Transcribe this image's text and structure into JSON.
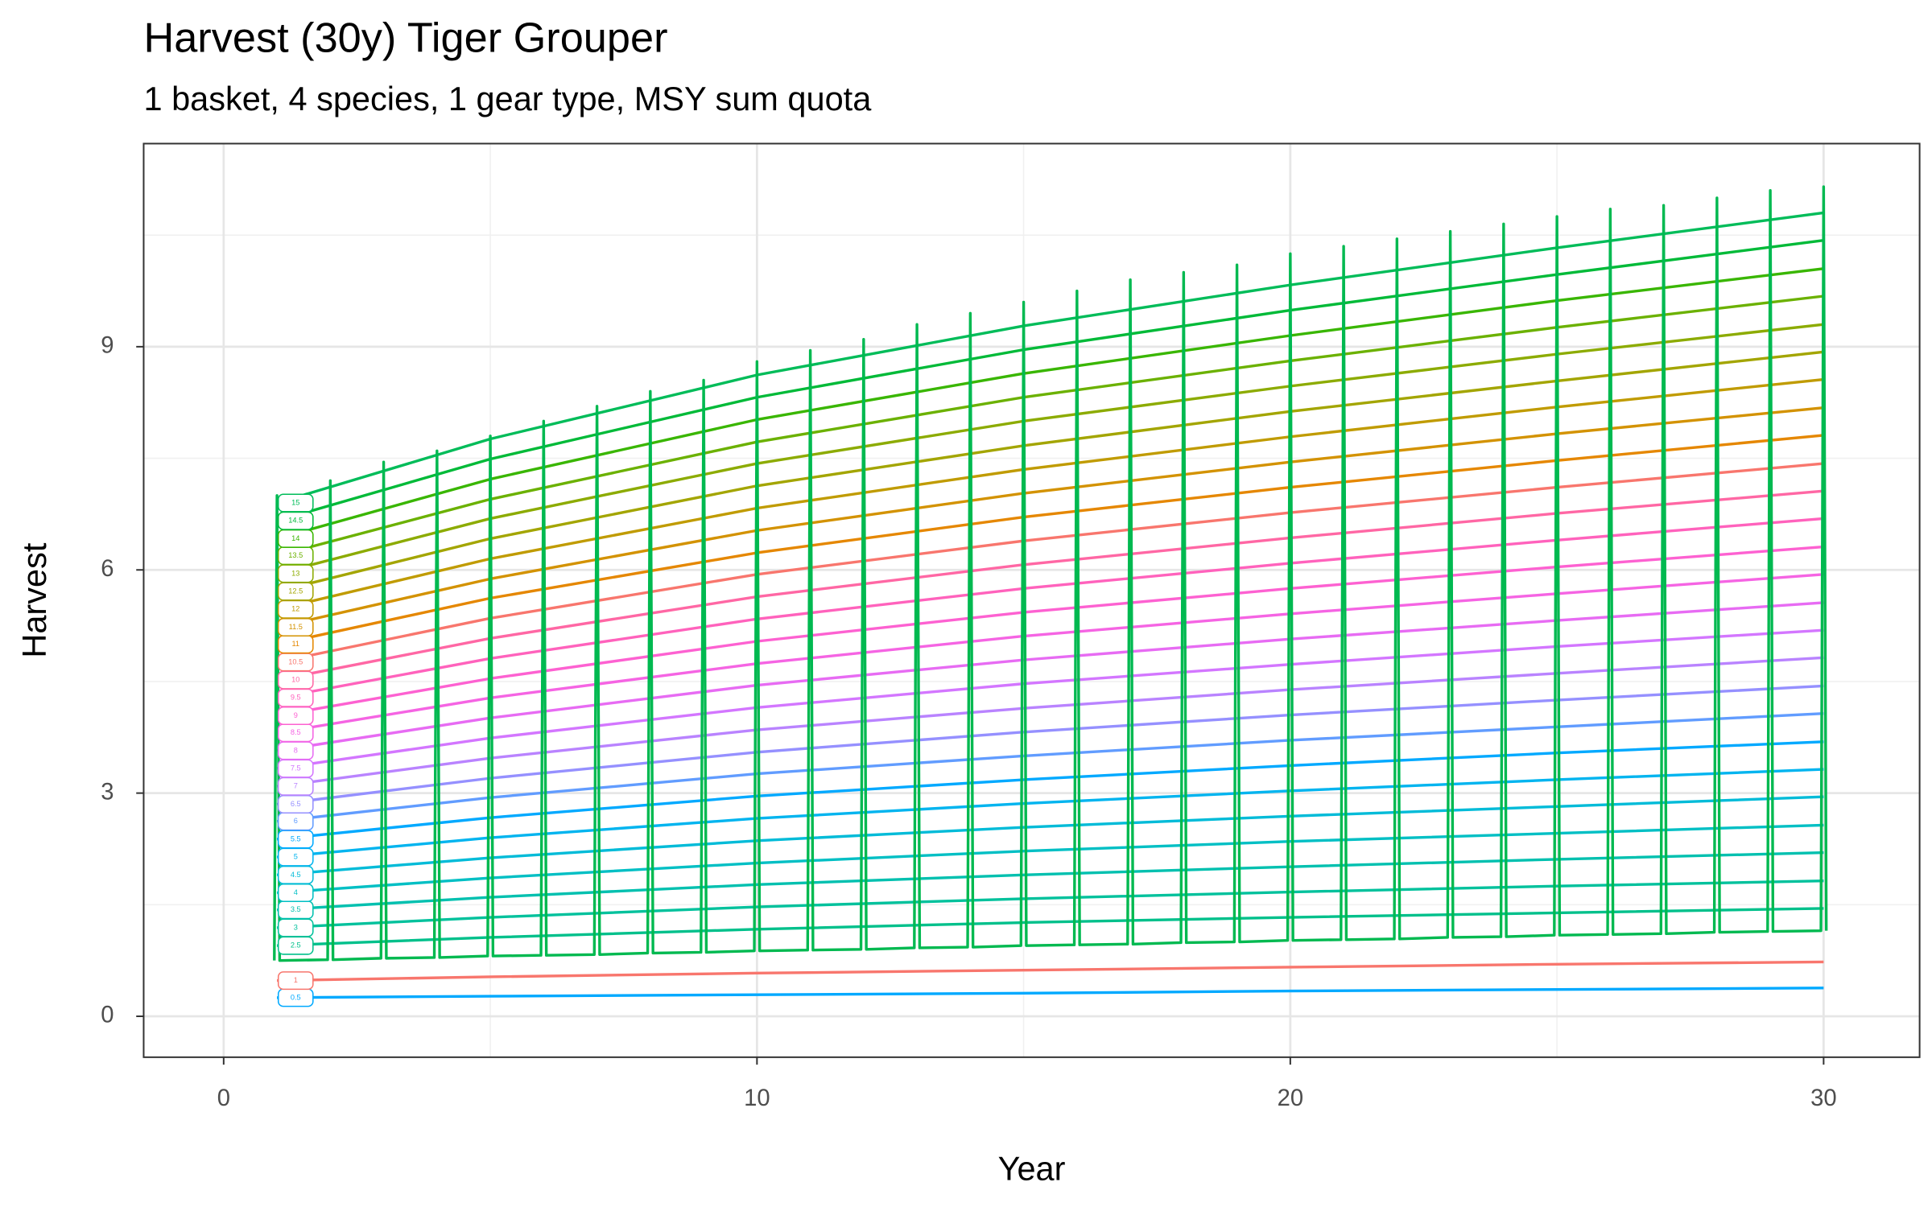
{
  "chart_data": {
    "type": "line",
    "title": "Harvest (30y) Tiger Grouper",
    "subtitle": "1 basket, 4 species, 1 gear type, MSY sum quota",
    "x_label": "Year",
    "y_label": "Harvest",
    "xlim": [
      -1.5,
      31.8
    ],
    "ylim": [
      -0.55,
      11.73
    ],
    "xticks": [
      0,
      10,
      20,
      30
    ],
    "yticks": [
      0,
      3,
      6,
      9
    ],
    "xminorticks": [
      5,
      15,
      25
    ],
    "yminorticks": [
      1.5,
      4.5,
      7.5,
      10.5
    ],
    "grid": true,
    "x": [
      1,
      5,
      10,
      15,
      20,
      25,
      30
    ],
    "series": [
      {
        "name": "0.5",
        "color": "#00a9ff",
        "values": [
          0.25,
          0.27,
          0.29,
          0.31,
          0.34,
          0.36,
          0.38
        ]
      },
      {
        "name": "1",
        "color": "#f8766d",
        "values": [
          0.48,
          0.53,
          0.58,
          0.62,
          0.66,
          0.7,
          0.73
        ]
      },
      {
        "name": "2.5",
        "color": "#00c08b",
        "values": [
          0.95,
          1.06,
          1.17,
          1.26,
          1.33,
          1.39,
          1.45
        ]
      },
      {
        "name": "3",
        "color": "#00c19c",
        "values": [
          1.19,
          1.33,
          1.47,
          1.58,
          1.67,
          1.75,
          1.82
        ]
      },
      {
        "name": "3.5",
        "color": "#00c0af",
        "values": [
          1.43,
          1.6,
          1.77,
          1.9,
          2.01,
          2.11,
          2.2
        ]
      },
      {
        "name": "4",
        "color": "#00bfc4",
        "values": [
          1.66,
          1.86,
          2.06,
          2.22,
          2.35,
          2.46,
          2.57
        ]
      },
      {
        "name": "4.5",
        "color": "#00bbd8",
        "values": [
          1.9,
          2.13,
          2.36,
          2.54,
          2.69,
          2.82,
          2.95
        ]
      },
      {
        "name": "5",
        "color": "#00b4ef",
        "values": [
          2.14,
          2.4,
          2.66,
          2.86,
          3.03,
          3.18,
          3.32
        ]
      },
      {
        "name": "5.5",
        "color": "#00a9ff",
        "values": [
          2.38,
          2.67,
          2.96,
          3.18,
          3.37,
          3.54,
          3.69
        ]
      },
      {
        "name": "6",
        "color": "#619cff",
        "values": [
          2.62,
          2.94,
          3.26,
          3.5,
          3.71,
          3.89,
          4.07
        ]
      },
      {
        "name": "6.5",
        "color": "#9590ff",
        "values": [
          2.85,
          3.2,
          3.55,
          3.82,
          4.05,
          4.25,
          4.44
        ]
      },
      {
        "name": "7",
        "color": "#b983ff",
        "values": [
          3.09,
          3.47,
          3.85,
          4.14,
          4.39,
          4.61,
          4.82
        ]
      },
      {
        "name": "7.5",
        "color": "#d376ff",
        "values": [
          3.33,
          3.74,
          4.15,
          4.47,
          4.73,
          4.97,
          5.19
        ]
      },
      {
        "name": "8",
        "color": "#e76bf3",
        "values": [
          3.57,
          4.01,
          4.45,
          4.79,
          5.07,
          5.32,
          5.56
        ]
      },
      {
        "name": "8.5",
        "color": "#f564e3",
        "values": [
          3.81,
          4.28,
          4.74,
          5.11,
          5.41,
          5.68,
          5.94
        ]
      },
      {
        "name": "9",
        "color": "#fd61d1",
        "values": [
          4.04,
          4.54,
          5.04,
          5.43,
          5.75,
          6.04,
          6.31
        ]
      },
      {
        "name": "9.5",
        "color": "#ff62bc",
        "values": [
          4.28,
          4.81,
          5.34,
          5.75,
          6.09,
          6.4,
          6.69
        ]
      },
      {
        "name": "10",
        "color": "#ff67a4",
        "values": [
          4.52,
          5.08,
          5.64,
          6.07,
          6.43,
          6.76,
          7.06
        ]
      },
      {
        "name": "10.5",
        "color": "#f8766d",
        "values": [
          4.76,
          5.35,
          5.94,
          6.39,
          6.77,
          7.11,
          7.43
        ]
      },
      {
        "name": "11",
        "color": "#e58700",
        "values": [
          5.0,
          5.62,
          6.23,
          6.71,
          7.11,
          7.47,
          7.81
        ]
      },
      {
        "name": "11.5",
        "color": "#d39200",
        "values": [
          5.23,
          5.88,
          6.53,
          7.03,
          7.45,
          7.83,
          8.18
        ]
      },
      {
        "name": "12",
        "color": "#c09b00",
        "values": [
          5.47,
          6.15,
          6.83,
          7.35,
          7.79,
          8.19,
          8.56
        ]
      },
      {
        "name": "12.5",
        "color": "#a3a500",
        "values": [
          5.71,
          6.42,
          7.13,
          7.67,
          8.13,
          8.54,
          8.93
        ]
      },
      {
        "name": "13",
        "color": "#8cab00",
        "values": [
          5.95,
          6.69,
          7.43,
          8.0,
          8.47,
          8.9,
          9.3
        ]
      },
      {
        "name": "13.5",
        "color": "#6bb100",
        "values": [
          6.19,
          6.95,
          7.72,
          8.32,
          8.81,
          9.26,
          9.68
        ]
      },
      {
        "name": "14",
        "color": "#39b600",
        "values": [
          6.42,
          7.22,
          8.02,
          8.64,
          9.15,
          9.62,
          10.05
        ]
      },
      {
        "name": "14.5",
        "color": "#00ba38",
        "values": [
          6.66,
          7.49,
          8.32,
          8.96,
          9.49,
          9.97,
          10.43
        ]
      },
      {
        "name": "15",
        "color": "#00bc59",
        "values": [
          6.9,
          7.76,
          8.62,
          9.28,
          9.83,
          10.33,
          10.8
        ]
      },
      {
        "color": "#00b950",
        "x": [
          0.95,
          1,
          1.05,
          1.95,
          2,
          2.05,
          2.95,
          3,
          3.05,
          3.95,
          4,
          4.05,
          4.95,
          5,
          5.05,
          5.95,
          6,
          6.05,
          6.95,
          7,
          7.05,
          7.95,
          8,
          8.05,
          8.95,
          9,
          9.05,
          9.95,
          10,
          10.05,
          10.95,
          11,
          11.05,
          11.95,
          12,
          12.05,
          12.95,
          13,
          13.05,
          13.95,
          14,
          14.05,
          14.95,
          15,
          15.05,
          15.95,
          16,
          16.05,
          16.95,
          17,
          17.05,
          17.95,
          18,
          18.05,
          18.95,
          19,
          19.05,
          19.95,
          20,
          20.05,
          20.95,
          21,
          21.05,
          21.95,
          22,
          22.05,
          22.95,
          23,
          23.05,
          23.95,
          24,
          24.05,
          24.95,
          25,
          25.05,
          25.95,
          26,
          26.05,
          26.95,
          27,
          27.05,
          27.95,
          28,
          28.05,
          28.95,
          29,
          29.05,
          29.95,
          30,
          30.05
        ],
        "values": [
          0.75,
          7.0,
          0.75,
          0.76,
          7.2,
          0.76,
          0.78,
          7.45,
          0.78,
          0.79,
          7.6,
          0.79,
          0.81,
          7.8,
          0.81,
          0.82,
          8.0,
          0.82,
          0.83,
          8.2,
          0.83,
          0.85,
          8.4,
          0.85,
          0.86,
          8.55,
          0.86,
          0.88,
          8.8,
          0.88,
          0.89,
          8.95,
          0.89,
          0.9,
          9.1,
          0.9,
          0.92,
          9.3,
          0.92,
          0.93,
          9.45,
          0.93,
          0.95,
          9.6,
          0.95,
          0.96,
          9.75,
          0.96,
          0.97,
          9.9,
          0.97,
          0.99,
          10.0,
          0.99,
          1.0,
          10.1,
          1.0,
          1.02,
          10.25,
          1.02,
          1.03,
          10.35,
          1.03,
          1.04,
          10.45,
          1.04,
          1.06,
          10.55,
          1.06,
          1.07,
          10.65,
          1.07,
          1.09,
          10.75,
          1.09,
          1.1,
          10.85,
          1.1,
          1.11,
          10.9,
          1.11,
          1.13,
          11.0,
          1.13,
          1.14,
          11.1,
          1.14,
          1.15,
          11.15,
          1.15
        ]
      }
    ]
  }
}
